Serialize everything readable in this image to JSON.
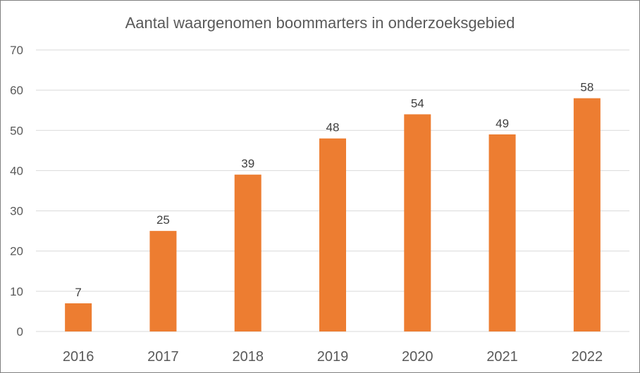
{
  "chart_data": {
    "type": "bar",
    "title": "Aantal waargenomen boommarters in onderzoeksgebied",
    "categories": [
      "2016",
      "2017",
      "2018",
      "2019",
      "2020",
      "2021",
      "2022"
    ],
    "values": [
      7,
      25,
      39,
      48,
      54,
      49,
      58
    ],
    "data_labels": [
      "7",
      "25",
      "39",
      "48",
      "54",
      "49",
      "58"
    ],
    "y_ticks": [
      "0",
      "10",
      "20",
      "30",
      "40",
      "50",
      "60",
      "70"
    ],
    "ylim": [
      0,
      70
    ],
    "grid": true,
    "legend": "none",
    "bar_color": "#ED7D31",
    "xlabel": "",
    "ylabel": ""
  }
}
